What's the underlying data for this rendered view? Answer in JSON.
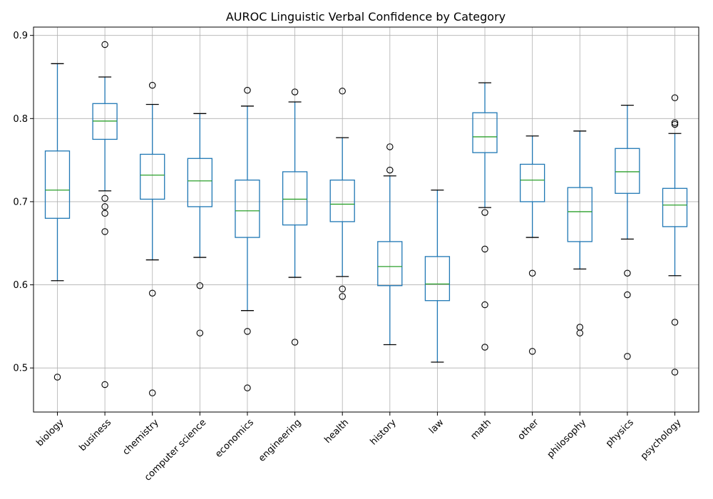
{
  "chart_data": {
    "type": "box",
    "title": "AUROC Linguistic Verbal Confidence by Category",
    "xlabel": "",
    "ylabel": "",
    "ylim": [
      0.447,
      0.91
    ],
    "yticks": [
      0.5,
      0.6,
      0.7,
      0.8,
      0.9
    ],
    "ytick_labels": [
      "0.5",
      "0.6",
      "0.7",
      "0.8",
      "0.9"
    ],
    "grid": true,
    "colors": {
      "box": "#1f77b4",
      "median": "#2ca02c",
      "whisker": "#1f77b4",
      "cap": "#000000",
      "grid": "#b0b0b0",
      "flier": "#000000"
    },
    "categories": [
      "biology",
      "business",
      "chemistry",
      "computer science",
      "economics",
      "engineering",
      "health",
      "history",
      "law",
      "math",
      "other",
      "philosophy",
      "physics",
      "psychology"
    ],
    "boxes": [
      {
        "whislo": 0.605,
        "q1": 0.68,
        "med": 0.714,
        "q3": 0.761,
        "whishi": 0.866,
        "fliers": [
          0.489
        ]
      },
      {
        "whislo": 0.713,
        "q1": 0.775,
        "med": 0.797,
        "q3": 0.818,
        "whishi": 0.85,
        "fliers": [
          0.889,
          0.704,
          0.694,
          0.686,
          0.664,
          0.48
        ]
      },
      {
        "whislo": 0.63,
        "q1": 0.703,
        "med": 0.732,
        "q3": 0.757,
        "whishi": 0.817,
        "fliers": [
          0.84,
          0.59,
          0.47
        ]
      },
      {
        "whislo": 0.633,
        "q1": 0.694,
        "med": 0.725,
        "q3": 0.752,
        "whishi": 0.806,
        "fliers": [
          0.599,
          0.542
        ]
      },
      {
        "whislo": 0.569,
        "q1": 0.657,
        "med": 0.689,
        "q3": 0.726,
        "whishi": 0.815,
        "fliers": [
          0.834,
          0.544,
          0.476
        ]
      },
      {
        "whislo": 0.609,
        "q1": 0.672,
        "med": 0.703,
        "q3": 0.736,
        "whishi": 0.82,
        "fliers": [
          0.832,
          0.531
        ]
      },
      {
        "whislo": 0.61,
        "q1": 0.676,
        "med": 0.697,
        "q3": 0.726,
        "whishi": 0.777,
        "fliers": [
          0.833,
          0.595,
          0.586
        ]
      },
      {
        "whislo": 0.528,
        "q1": 0.599,
        "med": 0.622,
        "q3": 0.652,
        "whishi": 0.731,
        "fliers": [
          0.766,
          0.738
        ]
      },
      {
        "whislo": 0.507,
        "q1": 0.581,
        "med": 0.601,
        "q3": 0.634,
        "whishi": 0.714,
        "fliers": []
      },
      {
        "whislo": 0.693,
        "q1": 0.759,
        "med": 0.778,
        "q3": 0.807,
        "whishi": 0.843,
        "fliers": [
          0.687,
          0.643,
          0.576,
          0.525
        ]
      },
      {
        "whislo": 0.657,
        "q1": 0.7,
        "med": 0.726,
        "q3": 0.745,
        "whishi": 0.779,
        "fliers": [
          0.614,
          0.52
        ]
      },
      {
        "whislo": 0.619,
        "q1": 0.652,
        "med": 0.688,
        "q3": 0.717,
        "whishi": 0.785,
        "fliers": [
          0.549,
          0.542
        ]
      },
      {
        "whislo": 0.655,
        "q1": 0.71,
        "med": 0.736,
        "q3": 0.764,
        "whishi": 0.816,
        "fliers": [
          0.614,
          0.588,
          0.514
        ]
      },
      {
        "whislo": 0.611,
        "q1": 0.67,
        "med": 0.696,
        "q3": 0.716,
        "whishi": 0.782,
        "fliers": [
          0.825,
          0.795,
          0.793,
          0.555,
          0.495
        ]
      }
    ]
  }
}
